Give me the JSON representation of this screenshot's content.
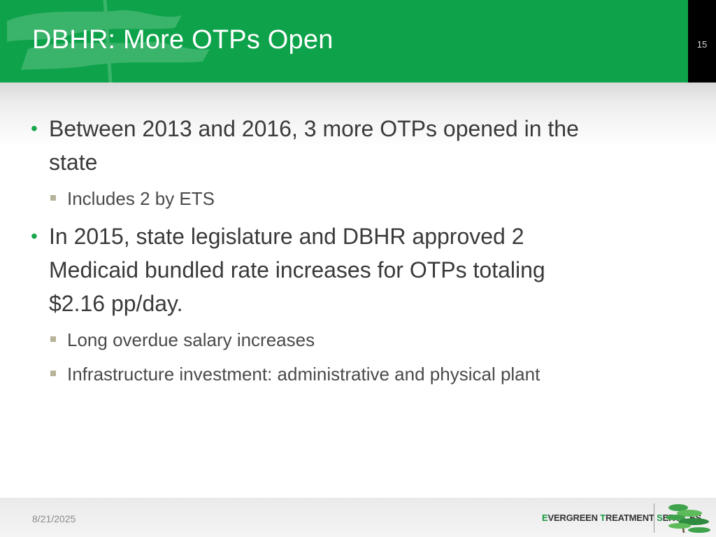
{
  "slide": {
    "title": "DBHR: More OTPs Open",
    "page_number": "15"
  },
  "bullets": [
    {
      "text_lines": [
        "Between 2013 and 2016, 3 more OTPs opened in the",
        "state"
      ],
      "sub": [
        "Includes 2 by ETS"
      ]
    },
    {
      "text_lines": [
        "In 2015, state legislature and DBHR approved 2",
        "Medicaid bundled rate increases for OTPs totaling",
        "$2.16 pp/day."
      ],
      "sub": [
        "Long overdue salary increases",
        "Infrastructure investment: administrative and physical plant"
      ]
    }
  ],
  "footer": {
    "date": "8/21/2025",
    "logo": {
      "parts": [
        "E",
        "VERGREEN ",
        "T",
        "REATMENT ",
        "S",
        "ERVICES"
      ],
      "highlight_color": "#1a9a44"
    }
  },
  "colors": {
    "header_green": "#0ea34a",
    "page_box": "#000000",
    "bullet_green": "#18a64a",
    "sub_bullet": "#b7b39a"
  }
}
